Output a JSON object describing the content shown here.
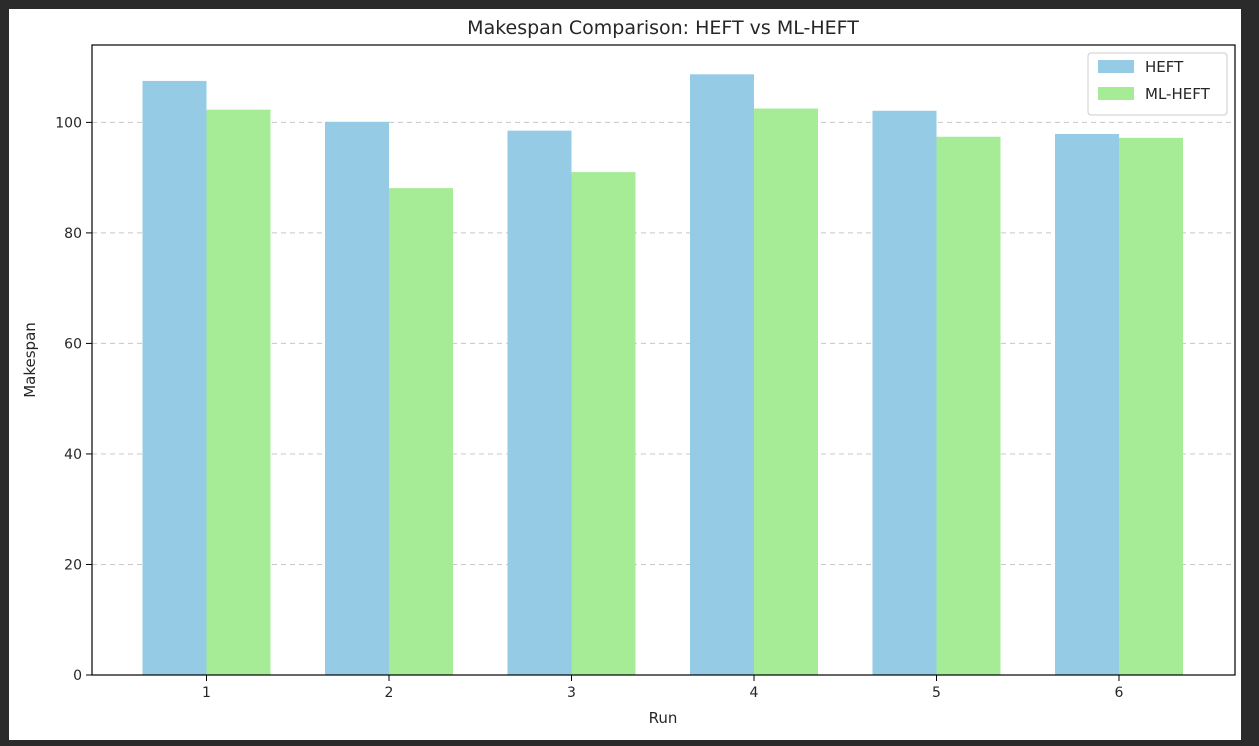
{
  "chart_data": {
    "type": "bar",
    "title": "Makespan Comparison: HEFT vs ML-HEFT",
    "xlabel": "Run",
    "ylabel": "Makespan",
    "categories": [
      "1",
      "2",
      "3",
      "4",
      "5",
      "6"
    ],
    "series": [
      {
        "name": "HEFT",
        "values": [
          107.5,
          100.1,
          98.5,
          108.7,
          102.1,
          97.9
        ],
        "color": "#96cbe6"
      },
      {
        "name": "ML-HEFT",
        "values": [
          102.3,
          88.1,
          91.0,
          102.5,
          97.4,
          97.2
        ],
        "color": "#a6eb95"
      }
    ],
    "ylim": [
      0,
      114
    ],
    "yticks": [
      0,
      20,
      40,
      60,
      80,
      100
    ],
    "grid": {
      "axis": "y",
      "style": "dashed"
    },
    "legend_position": "top-right"
  }
}
